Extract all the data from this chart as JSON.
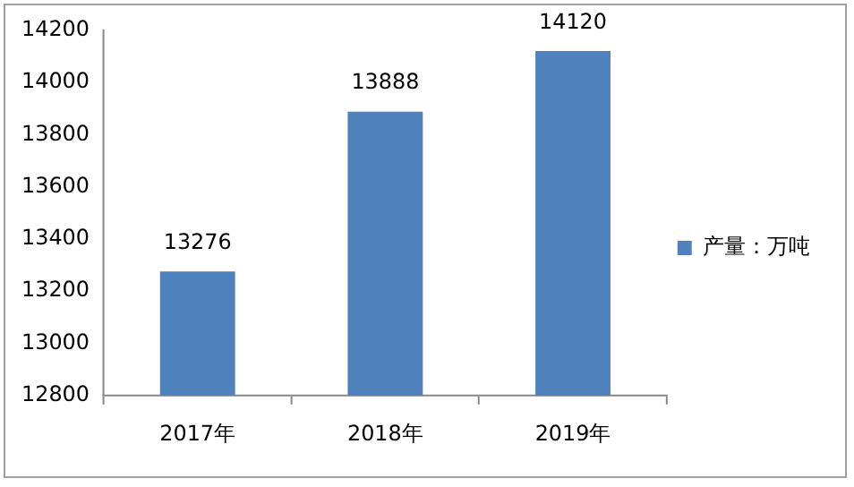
{
  "chart_data": {
    "type": "bar",
    "categories": [
      "2017年",
      "2018年",
      "2019年"
    ],
    "series": [
      {
        "name": "产量：万吨",
        "color": "#4f81bd",
        "values": [
          13276,
          13888,
          14120
        ]
      }
    ],
    "ylim": [
      12800,
      14200
    ],
    "yticks": [
      12800,
      13000,
      13200,
      13400,
      13600,
      13800,
      14000,
      14200
    ],
    "grid": false,
    "legend": "right",
    "data_labels": true
  }
}
